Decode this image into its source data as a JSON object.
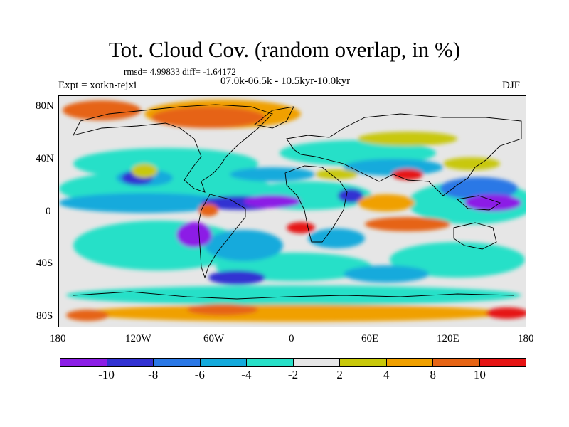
{
  "title": "Tot. Cloud Cov. (random overlap, in %)",
  "stats": "rmsd= 4.99833 diff= -1.64172",
  "expt": "Expt = xotkn-tejxi",
  "period": "07.0k-06.5k - 10.5kyr-10.0kyr",
  "season": "DJF",
  "lat_labels": [
    "80N",
    "40N",
    "0",
    "40S",
    "80S"
  ],
  "lon_labels": [
    "180",
    "120W",
    "60W",
    "0",
    "60E",
    "120E",
    "180"
  ],
  "colorbar": {
    "colors": [
      "#8c1ee6",
      "#3232d2",
      "#2a78e6",
      "#14aadc",
      "#28e0c8",
      "#e6e6e6",
      "#c8c80a",
      "#f0a000",
      "#e66414",
      "#e61414"
    ],
    "labels": [
      "-10",
      "-8",
      "-6",
      "-4",
      "-2",
      "2",
      "4",
      "8",
      "10"
    ]
  }
}
